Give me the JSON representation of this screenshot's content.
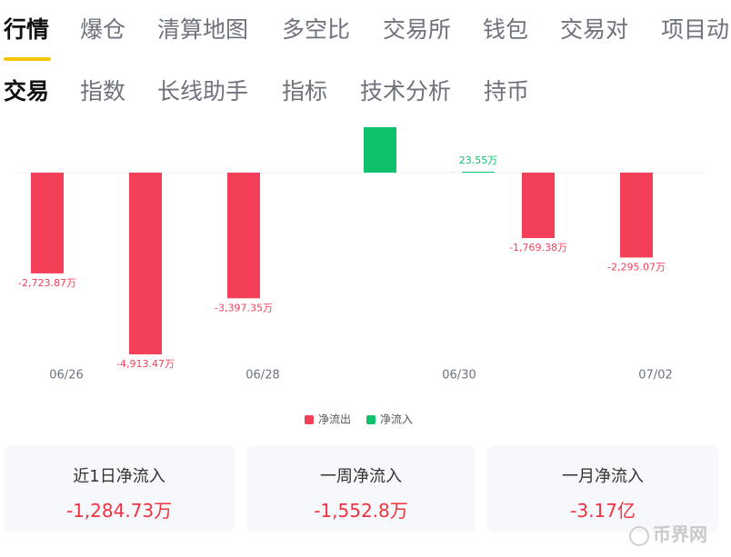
{
  "tabs": {
    "primary": [
      "行情",
      "爆仓",
      "清算地图",
      "多空比",
      "交易所",
      "钱包",
      "交易对",
      "项目动"
    ],
    "secondary": [
      "交易",
      "指数",
      "长线助手",
      "指标",
      "技术分析",
      "持币"
    ]
  },
  "chart_data": {
    "type": "bar",
    "categories": [
      "06/26",
      null,
      "06/28",
      null,
      "06/30",
      null,
      "07/02"
    ],
    "series": [
      {
        "name": "净流出",
        "color": "#f43f59",
        "values": [
          -2723.87,
          -4913.47,
          -3397.35,
          null,
          null,
          -1769.38,
          -2295.07
        ],
        "value_labels": [
          "-2,723.87万",
          "-4,913.47万",
          "-3,397.35万",
          null,
          null,
          "-1,769.38万",
          "-2,295.07万"
        ]
      },
      {
        "name": "净流入",
        "color": "#0fc06c",
        "values": [
          null,
          null,
          null,
          1230,
          23.55,
          null,
          null
        ],
        "value_labels": [
          null,
          null,
          null,
          null,
          "23.55万",
          null,
          null
        ]
      }
    ]
  },
  "cards": [
    {
      "label": "近1日净流入",
      "value": "-1,284.73万"
    },
    {
      "label": "一周净流入",
      "value": "-1,552.8万"
    },
    {
      "label": "一月净流入",
      "value": "-3.17亿"
    }
  ],
  "watermark": "币界网"
}
